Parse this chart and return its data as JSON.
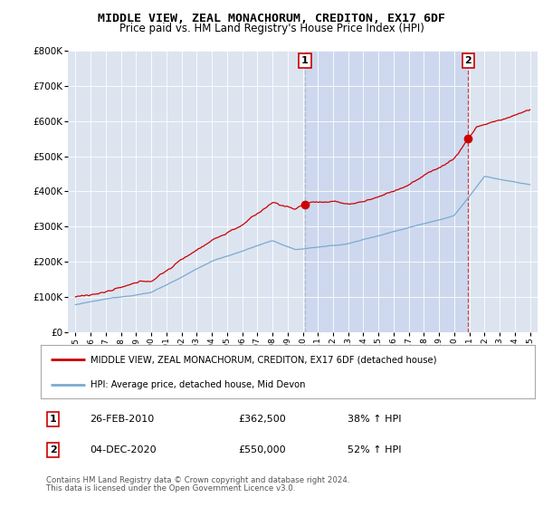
{
  "title": "MIDDLE VIEW, ZEAL MONACHORUM, CREDITON, EX17 6DF",
  "subtitle": "Price paid vs. HM Land Registry's House Price Index (HPI)",
  "red_label": "MIDDLE VIEW, ZEAL MONACHORUM, CREDITON, EX17 6DF (detached house)",
  "blue_label": "HPI: Average price, detached house, Mid Devon",
  "footnote1": "Contains HM Land Registry data © Crown copyright and database right 2024.",
  "footnote2": "This data is licensed under the Open Government Licence v3.0.",
  "annotation1": {
    "num": "1",
    "date": "26-FEB-2010",
    "price": "£362,500",
    "pct": "38% ↑ HPI"
  },
  "annotation2": {
    "num": "2",
    "date": "04-DEC-2020",
    "price": "£550,000",
    "pct": "52% ↑ HPI"
  },
  "ylim": [
    0,
    800000
  ],
  "yticks": [
    0,
    100000,
    200000,
    300000,
    400000,
    500000,
    600000,
    700000,
    800000
  ],
  "ytick_labels": [
    "£0",
    "£100K",
    "£200K",
    "£300K",
    "£400K",
    "£500K",
    "£600K",
    "£700K",
    "£800K"
  ],
  "background_color": "#dce4f0",
  "shade_color": "#cdd8ee",
  "sale1_year": 2010.15,
  "sale1_price": 362500,
  "sale2_year": 2020.92,
  "sale2_price": 550000,
  "red_color": "#cc0000",
  "blue_color": "#7aaad0",
  "vline_color": "#aabbcc",
  "vline2_color": "#cc4444"
}
